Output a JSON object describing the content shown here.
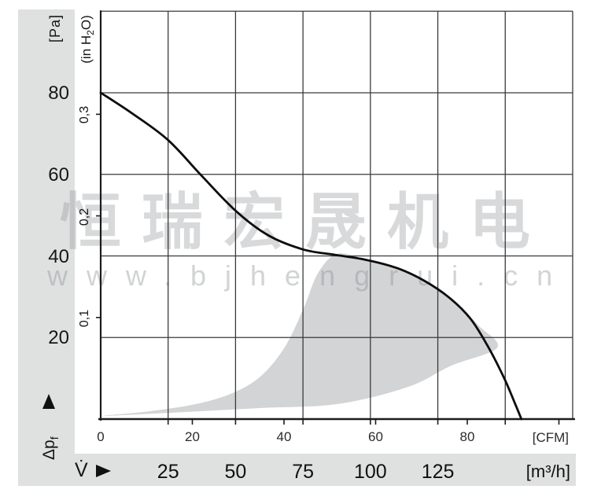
{
  "watermark": {
    "cjk": "恒瑞宏晟机电",
    "url": "www.bjhengrui.cn"
  },
  "labels": {
    "pa_unit": "[Pa]",
    "h2o_prefix": "(in H",
    "h2o_sub": "2",
    "h2o_suffix": "O)",
    "dp_symbol": "Δp",
    "dp_sub": "f",
    "flow_symbol": "V̇",
    "cfm_unit": "[CFM]",
    "m3h_unit": "[m³/h]"
  },
  "icons": {
    "dp_axis_arrow": "up-arrow-icon",
    "flow_axis_arrow": "right-arrow-icon"
  },
  "chart_data": {
    "type": "line",
    "title": "",
    "grid": "on",
    "x_axis": {
      "primary_unit": "[CFM]",
      "primary_ticks": [
        0,
        20,
        40,
        60,
        80
      ],
      "secondary_unit": "[m³/h]",
      "secondary_ticks": [
        25,
        50,
        75,
        100,
        125
      ],
      "range_m3h": [
        0,
        175
      ],
      "gridline_step_m3h": 25,
      "m3h_per_cfm": 1.699011
    },
    "y_axis": {
      "primary_unit": "[Pa]",
      "primary_ticks": [
        20,
        40,
        60,
        80
      ],
      "secondary_unit": "(in H2O)",
      "secondary_ticks": [
        0.1,
        0.2,
        0.3
      ],
      "range_pa": [
        0,
        100
      ],
      "gridline_step_pa": 20,
      "pa_per_inh2o": 249.089
    },
    "series": [
      {
        "name": "fan-pressure-curve",
        "color": "#0d0d0d",
        "points_m3h_pa": [
          [
            0,
            80
          ],
          [
            12,
            74.8
          ],
          [
            25,
            68.4
          ],
          [
            37.5,
            59.6
          ],
          [
            50,
            51.1
          ],
          [
            62,
            45.1
          ],
          [
            75,
            41.6
          ],
          [
            86.5,
            40.3
          ],
          [
            98,
            39.1
          ],
          [
            110,
            37.0
          ],
          [
            120,
            33.9
          ],
          [
            129,
            29.9
          ],
          [
            137,
            24.7
          ],
          [
            143.5,
            17.9
          ],
          [
            149.5,
            10.2
          ],
          [
            153.5,
            4.0
          ],
          [
            156,
            0
          ]
        ]
      }
    ],
    "operating_region": {
      "name": "recommended-operating-range",
      "color": "#d2d4d5",
      "polygon_m3h_pa": [
        [
          1,
          0.8
        ],
        [
          30,
          1.7
        ],
        [
          59,
          2.7
        ],
        [
          88,
          3.7
        ],
        [
          114,
          7.9
        ],
        [
          130,
          13.1
        ],
        [
          147,
          17.5
        ],
        [
          140.5,
          22.7
        ],
        [
          132,
          28.0
        ],
        [
          121.5,
          33.3
        ],
        [
          110,
          37.2
        ],
        [
          97.5,
          39.3
        ],
        [
          87.5,
          40.5
        ],
        [
          80.5,
          35.7
        ],
        [
          75.5,
          27.6
        ],
        [
          68.5,
          17.9
        ],
        [
          59.5,
          10.6
        ],
        [
          49,
          6.4
        ],
        [
          35.5,
          3.7
        ],
        [
          18,
          1.9
        ]
      ]
    }
  }
}
